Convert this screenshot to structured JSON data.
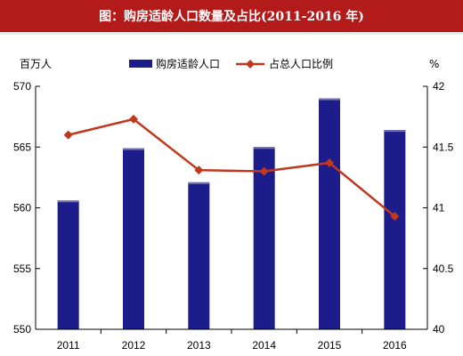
{
  "title": "图：购房适龄人口数量及占比(2011-2016 年)",
  "colors": {
    "title_bg": "#b31b1b",
    "bar": "#1c1c8a",
    "line": "#c0381e"
  },
  "chart_data": {
    "type": "bar+line",
    "title": "图：购房适龄人口数量及占比(2011-2016 年)",
    "categories": [
      "2011",
      "2012",
      "2013",
      "2014",
      "2015",
      "2016"
    ],
    "left_unit": "百万人",
    "right_unit": "%",
    "ylim_left": [
      550,
      570
    ],
    "yticks_left": [
      "550",
      "555",
      "560",
      "565",
      "570"
    ],
    "ylim_right": [
      40,
      42
    ],
    "yticks_right": [
      "40",
      "40.5",
      "41",
      "41.5",
      "42"
    ],
    "legend_position": "top-center",
    "grid": false,
    "series": [
      {
        "name": "购房适龄人口",
        "type": "bar",
        "axis": "left",
        "values": [
          560.6,
          564.9,
          562.1,
          565.0,
          569.0,
          566.4
        ]
      },
      {
        "name": "占总人口比例",
        "type": "line",
        "axis": "right",
        "values": [
          41.6,
          41.73,
          41.31,
          41.3,
          41.37,
          40.93
        ]
      }
    ]
  }
}
